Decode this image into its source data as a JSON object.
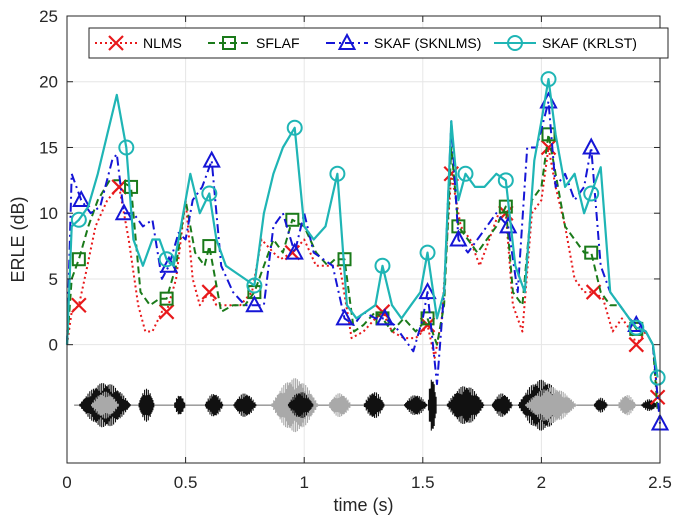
{
  "chart_data": {
    "type": "line",
    "xlabel": "time (s)",
    "ylabel": "ERLE (dB)",
    "xlim": [
      0,
      2.5
    ],
    "ylim": [
      -9,
      25
    ],
    "xticks": [
      0,
      0.5,
      1,
      1.5,
      2,
      2.5
    ],
    "xtick_labels": [
      "0",
      "0.5",
      "1",
      "1.5",
      "2",
      "2.5"
    ],
    "yticks": [
      0,
      5,
      10,
      15,
      20,
      25
    ],
    "ytick_labels": [
      "0",
      "5",
      "10",
      "15",
      "20",
      "25"
    ],
    "grid": true,
    "legend_position": "top (single row)",
    "series": [
      {
        "name": "NLMS",
        "color": "#e8191b",
        "dash": "dotted",
        "marker": "x",
        "marker_x": [
          0.05,
          0.22,
          0.42,
          0.6,
          0.95,
          1.33,
          1.52,
          1.62,
          1.85,
          2.03,
          2.22,
          2.4,
          2.49
        ],
        "x": [
          0.0,
          0.02,
          0.05,
          0.08,
          0.12,
          0.17,
          0.22,
          0.26,
          0.3,
          0.33,
          0.36,
          0.4,
          0.42,
          0.46,
          0.5,
          0.53,
          0.56,
          0.6,
          0.63,
          0.68,
          0.73,
          0.78,
          0.82,
          0.87,
          0.9,
          0.95,
          1.0,
          1.05,
          1.1,
          1.15,
          1.2,
          1.25,
          1.3,
          1.33,
          1.37,
          1.42,
          1.47,
          1.5,
          1.52,
          1.55,
          1.58,
          1.62,
          1.66,
          1.7,
          1.74,
          1.78,
          1.82,
          1.85,
          1.88,
          1.92,
          1.96,
          2.0,
          2.03,
          2.06,
          2.1,
          2.14,
          2.18,
          2.22,
          2.26,
          2.3,
          2.34,
          2.38,
          2.4,
          2.44,
          2.47,
          2.49
        ],
        "y": [
          0,
          2.5,
          3,
          5.5,
          9,
          11,
          12,
          8,
          3,
          1,
          1,
          2.5,
          2.5,
          5,
          11,
          5,
          3,
          4,
          3,
          3,
          3,
          4,
          8,
          7,
          6.5,
          7,
          8,
          6,
          6,
          6,
          0.5,
          1,
          2,
          2.5,
          1,
          0.5,
          0.5,
          1,
          1.5,
          -1,
          2,
          13,
          9,
          8,
          6,
          8,
          10,
          10,
          3,
          1,
          10,
          11,
          15,
          12,
          9,
          5,
          4,
          4,
          3.5,
          1,
          2,
          1,
          0,
          1,
          0,
          -4
        ]
      },
      {
        "name": "SFLAF",
        "color": "#1a7a1a",
        "dash": "dashed",
        "marker": "square",
        "marker_x": [
          0.05,
          0.27,
          0.42,
          0.6,
          0.79,
          0.95,
          1.17,
          1.33,
          1.52,
          1.65,
          1.85,
          2.03,
          2.21,
          2.4
        ],
        "x": [
          0.0,
          0.02,
          0.05,
          0.09,
          0.13,
          0.18,
          0.22,
          0.27,
          0.31,
          0.35,
          0.39,
          0.42,
          0.46,
          0.5,
          0.54,
          0.58,
          0.6,
          0.65,
          0.7,
          0.75,
          0.79,
          0.83,
          0.87,
          0.91,
          0.95,
          1.0,
          1.05,
          1.1,
          1.13,
          1.17,
          1.21,
          1.25,
          1.3,
          1.33,
          1.37,
          1.42,
          1.47,
          1.52,
          1.56,
          1.59,
          1.62,
          1.65,
          1.69,
          1.73,
          1.77,
          1.81,
          1.85,
          1.88,
          1.92,
          1.96,
          2.0,
          2.03,
          2.06,
          2.1,
          2.14,
          2.18,
          2.21,
          2.25,
          2.29,
          2.33,
          2.37,
          2.4,
          2.44,
          2.47,
          2.49
        ],
        "y": [
          0,
          5,
          6.5,
          9,
          11,
          12.5,
          12.5,
          12,
          4,
          3,
          3.5,
          3.5,
          6,
          11,
          7,
          6,
          7.5,
          2.5,
          3,
          3,
          4,
          6,
          8,
          7,
          9.5,
          9,
          7,
          6,
          6.5,
          6.5,
          1,
          1.5,
          2.5,
          2,
          1,
          2,
          1,
          2,
          0,
          3,
          15,
          9,
          8,
          7,
          8,
          9,
          10.5,
          4,
          3,
          11,
          12,
          16,
          13,
          9,
          8,
          7,
          7,
          4,
          3,
          3,
          2,
          1.2,
          1,
          0,
          -5
        ]
      },
      {
        "name": "SKAF (SKNLMS)",
        "color": "#1515d6",
        "dash": "dashdot",
        "marker": "triangle",
        "marker_x": [
          0.06,
          0.24,
          0.43,
          0.61,
          0.79,
          0.96,
          1.17,
          1.34,
          1.52,
          1.65,
          1.86,
          2.03,
          2.21,
          2.4,
          2.5
        ],
        "x": [
          0.0,
          0.02,
          0.06,
          0.1,
          0.14,
          0.19,
          0.21,
          0.24,
          0.28,
          0.32,
          0.36,
          0.4,
          0.43,
          0.47,
          0.5,
          0.53,
          0.57,
          0.61,
          0.65,
          0.7,
          0.75,
          0.79,
          0.83,
          0.87,
          0.91,
          0.96,
          1.0,
          1.04,
          1.08,
          1.12,
          1.17,
          1.21,
          1.25,
          1.3,
          1.34,
          1.38,
          1.42,
          1.46,
          1.5,
          1.52,
          1.56,
          1.59,
          1.62,
          1.65,
          1.69,
          1.73,
          1.77,
          1.81,
          1.86,
          1.9,
          1.94,
          1.98,
          2.03,
          2.06,
          2.1,
          2.14,
          2.18,
          2.21,
          2.25,
          2.29,
          2.33,
          2.37,
          2.4,
          2.44,
          2.47,
          2.5
        ],
        "y": [
          0,
          13,
          11,
          10,
          10.5,
          14,
          14.5,
          10,
          10,
          9,
          9.5,
          5,
          6,
          8.5,
          8,
          11,
          12,
          14,
          6,
          4,
          3,
          3,
          3,
          9,
          10,
          7,
          10,
          7,
          6.5,
          6,
          2,
          1.5,
          2.5,
          2,
          2,
          1.5,
          0.5,
          -0.5,
          2,
          4,
          -3,
          4,
          17,
          8,
          7,
          8,
          9,
          10,
          9,
          4,
          15,
          15,
          18.5,
          12,
          13,
          11,
          12,
          15,
          6,
          4,
          3,
          2,
          1.5,
          1,
          0,
          -6
        ]
      },
      {
        "name": "SKAF (KRLST)",
        "color": "#1fb5b5",
        "dash": "solid",
        "marker": "circle",
        "marker_x": [
          0.05,
          0.25,
          0.42,
          0.6,
          0.79,
          0.96,
          1.14,
          1.33,
          1.52,
          1.68,
          1.85,
          2.03,
          2.21,
          2.4,
          2.49
        ],
        "x": [
          0.0,
          0.02,
          0.05,
          0.09,
          0.13,
          0.17,
          0.21,
          0.25,
          0.28,
          0.32,
          0.36,
          0.39,
          0.42,
          0.45,
          0.48,
          0.52,
          0.56,
          0.6,
          0.63,
          0.67,
          0.71,
          0.75,
          0.79,
          0.83,
          0.87,
          0.91,
          0.96,
          1.0,
          1.04,
          1.09,
          1.14,
          1.18,
          1.22,
          1.26,
          1.3,
          1.33,
          1.37,
          1.41,
          1.45,
          1.49,
          1.52,
          1.56,
          1.59,
          1.62,
          1.65,
          1.68,
          1.72,
          1.76,
          1.81,
          1.85,
          1.89,
          1.93,
          1.97,
          2.0,
          2.03,
          2.06,
          2.1,
          2.14,
          2.18,
          2.21,
          2.25,
          2.29,
          2.33,
          2.37,
          2.4,
          2.44,
          2.47,
          2.49
        ],
        "y": [
          0,
          9,
          9.5,
          10.5,
          13,
          16,
          19,
          15,
          8,
          6,
          8,
          8,
          6.5,
          6,
          9,
          13,
          10,
          11.5,
          8,
          6,
          5.5,
          5,
          4.5,
          10,
          13,
          15,
          16.5,
          9,
          8,
          9,
          13,
          3,
          2,
          2.5,
          3,
          6,
          3,
          2,
          3,
          4,
          7,
          2,
          4,
          17,
          11,
          13,
          12,
          12,
          13,
          12.5,
          6,
          4,
          14,
          17,
          20.2,
          16,
          12,
          13,
          10,
          11.5,
          13.5,
          4,
          3,
          2,
          1.3,
          1,
          0,
          -2.5
        ]
      }
    ]
  }
}
